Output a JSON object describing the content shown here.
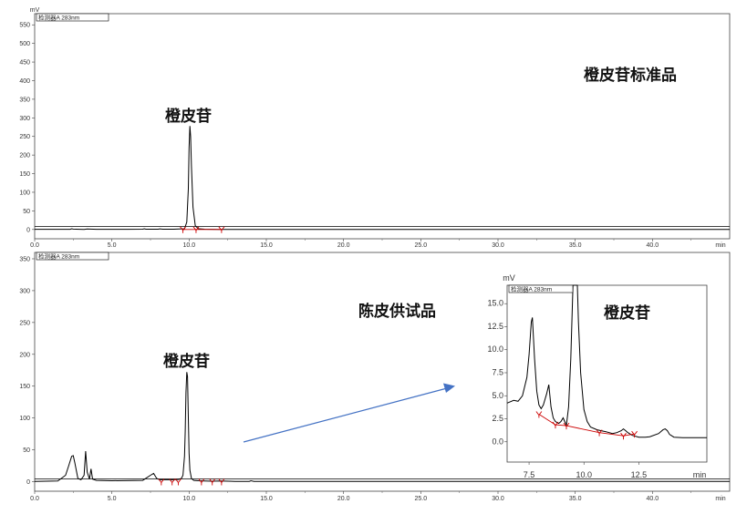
{
  "chart_data": [
    {
      "type": "line",
      "title": "",
      "ylabel": "mV",
      "xlabel": "min",
      "legend": "检测器A 283nm",
      "annotations": [
        "橙皮苷",
        "橙皮苷标准品"
      ],
      "xlim": [
        0,
        45
      ],
      "ylim": [
        -25,
        580
      ],
      "xticks": [
        0.0,
        5.0,
        10.0,
        15.0,
        20.0,
        25.0,
        30.0,
        35.0,
        40.0
      ],
      "yticks": [
        0,
        50,
        100,
        150,
        200,
        250,
        300,
        350,
        400,
        450,
        500,
        550
      ],
      "series": [
        {
          "x": [
            0.0,
            2.3,
            2.4,
            2.5,
            2.7,
            3.2,
            3.4,
            4.0,
            6.0,
            7.0,
            7.1,
            7.2,
            8.0,
            8.1,
            8.3,
            9.0,
            9.7,
            9.85,
            9.95,
            10.0,
            10.05,
            10.1,
            10.15,
            10.25,
            10.4,
            10.6,
            11.0,
            12.0,
            20.0,
            45.0
          ],
          "y": [
            0.5,
            0.5,
            2.0,
            1.0,
            0.8,
            0.3,
            1.2,
            0.5,
            0.5,
            0.6,
            2.0,
            0.7,
            0.6,
            1.8,
            0.6,
            0.8,
            2.0,
            20.0,
            110.0,
            220.0,
            278.0,
            250.0,
            170.0,
            60.0,
            10.0,
            2.0,
            0.6,
            0.3,
            0.2,
            0.2
          ]
        }
      ],
      "baseline_marks_x": [
        9.6,
        10.45,
        12.1
      ]
    },
    {
      "type": "line",
      "title": "",
      "ylabel": "mV",
      "xlabel": "min",
      "legend": "检测器A 283nm",
      "annotations": [
        "橙皮苷",
        "陈皮供试品"
      ],
      "xlim": [
        0,
        45
      ],
      "ylim": [
        -15,
        360
      ],
      "xticks": [
        0.0,
        5.0,
        10.0,
        15.0,
        20.0,
        25.0,
        30.0,
        35.0,
        40.0
      ],
      "yticks": [
        0,
        50,
        100,
        150,
        200,
        250,
        300,
        350
      ],
      "series": [
        {
          "x": [
            0.0,
            1.5,
            2.0,
            2.2,
            2.4,
            2.5,
            2.6,
            2.8,
            3.0,
            3.2,
            3.3,
            3.4,
            3.55,
            3.65,
            3.75,
            4.0,
            5.0,
            7.0,
            7.5,
            7.7,
            7.9,
            8.1,
            8.4,
            8.6,
            9.0,
            9.3,
            9.5,
            9.6,
            9.7,
            9.75,
            9.8,
            9.85,
            9.9,
            9.95,
            10.0,
            10.05,
            10.15,
            10.3,
            10.6,
            11.0,
            11.5,
            12.0,
            13.0,
            13.9,
            14.0,
            14.2,
            15.0,
            45.0
          ],
          "y": [
            0.5,
            1.0,
            10.0,
            25.0,
            40.0,
            41.0,
            30.0,
            5.0,
            3.0,
            10.0,
            48.0,
            15.0,
            4.0,
            20.0,
            4.0,
            2.0,
            1.5,
            2.0,
            10.0,
            13.0,
            5.0,
            3.0,
            3.0,
            3.0,
            3.0,
            3.5,
            5.0,
            10.0,
            40.0,
            80.0,
            140.0,
            172.0,
            165.0,
            100.0,
            45.0,
            18.0,
            5.0,
            2.0,
            1.5,
            1.0,
            0.8,
            1.0,
            0.5,
            0.5,
            1.5,
            0.5,
            0.3,
            0.3
          ]
        }
      ],
      "baseline_marks_x": [
        8.2,
        8.9,
        9.3,
        10.8,
        11.5,
        12.1
      ]
    },
    {
      "type": "line",
      "title": "",
      "ylabel": "mV",
      "xlabel": "min",
      "legend": "检测器A 283nm",
      "annotations": [
        "橙皮苷"
      ],
      "xlim": [
        6.5,
        15.6
      ],
      "ylim": [
        -2.2,
        17
      ],
      "xticks": [
        7.5,
        10.0,
        12.5
      ],
      "yticks": [
        0.0,
        2.5,
        5.0,
        7.5,
        10.0,
        12.5,
        15.0
      ],
      "series": [
        {
          "x": [
            6.5,
            6.8,
            7.0,
            7.2,
            7.4,
            7.5,
            7.6,
            7.65,
            7.75,
            7.85,
            7.95,
            8.05,
            8.15,
            8.3,
            8.4,
            8.5,
            8.6,
            8.7,
            8.85,
            8.95,
            9.05,
            9.2,
            9.3,
            9.4,
            9.5,
            9.55,
            9.6,
            9.7,
            9.75,
            9.85,
            10.0,
            10.15,
            10.3,
            10.6,
            11.0,
            11.3,
            11.5,
            11.7,
            11.8,
            11.9,
            12.0,
            12.2,
            12.5,
            12.8,
            13.0,
            13.4,
            13.6,
            13.7,
            13.8,
            13.9,
            14.1,
            14.5,
            15.0,
            15.6
          ],
          "y": [
            4.2,
            4.5,
            4.4,
            5.0,
            7.0,
            9.5,
            13.0,
            13.5,
            9.0,
            5.5,
            4.0,
            3.6,
            4.0,
            5.2,
            6.2,
            3.8,
            2.6,
            2.2,
            2.0,
            2.2,
            2.6,
            1.8,
            3.8,
            9.0,
            17.0,
            17.0,
            17.0,
            17.0,
            13.0,
            7.5,
            3.5,
            2.2,
            1.6,
            1.3,
            1.1,
            0.9,
            1.0,
            1.2,
            1.4,
            1.2,
            1.0,
            0.7,
            0.5,
            0.5,
            0.55,
            0.9,
            1.3,
            1.4,
            1.2,
            0.8,
            0.5,
            0.45,
            0.45,
            0.45
          ]
        }
      ],
      "baseline_marks_x": [
        7.95,
        8.7,
        9.2,
        10.7,
        11.8,
        12.3
      ],
      "baseline_y": [
        3.0,
        1.85,
        1.75,
        1.0,
        0.65,
        0.85
      ]
    }
  ]
}
